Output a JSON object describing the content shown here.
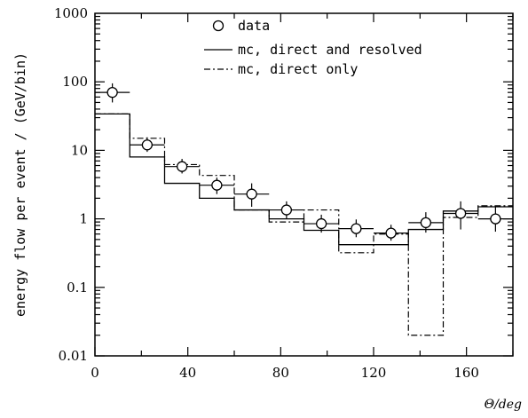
{
  "chart_data": {
    "type": "histogram",
    "xlabel": "Θ/deg",
    "ylabel": "energy flow per event / (GeV/bin)",
    "xlim": [
      0,
      180
    ],
    "ylim": [
      0.01,
      1000
    ],
    "yscale": "log",
    "x_ticks": [
      0,
      40,
      80,
      120,
      160
    ],
    "y_ticks": [
      {
        "value": 0.01,
        "label": "0.01"
      },
      {
        "value": 0.1,
        "label": "0.1"
      },
      {
        "value": 1,
        "label": "1"
      },
      {
        "value": 10,
        "label": "10"
      },
      {
        "value": 100,
        "label": "100"
      },
      {
        "value": 1000,
        "label": "1000"
      }
    ],
    "bin_edges": [
      0,
      15,
      30,
      45,
      60,
      75,
      90,
      105,
      120,
      135,
      150,
      165,
      180
    ],
    "series": [
      {
        "name": "data",
        "style": "open-circle",
        "x": [
          7.5,
          22.5,
          37.5,
          52.5,
          67.5,
          82.5,
          97.5,
          112.5,
          127.5,
          142.5,
          157.5,
          172.5
        ],
        "y": [
          70,
          12,
          5.8,
          3.1,
          2.3,
          1.35,
          0.85,
          0.72,
          0.62,
          0.88,
          1.2,
          1.0
        ],
        "y_err_low": [
          50,
          9.5,
          4.6,
          2.3,
          1.5,
          1.0,
          0.63,
          0.54,
          0.48,
          0.63,
          0.7,
          0.65
        ],
        "y_err_high": [
          95,
          15.5,
          7.5,
          4.0,
          3.3,
          1.8,
          1.15,
          0.98,
          0.82,
          1.25,
          1.8,
          1.55
        ]
      },
      {
        "name": "mc, direct and resolved",
        "style": "solid",
        "values": [
          34,
          8,
          3.3,
          2.0,
          1.35,
          1.0,
          0.68,
          0.42,
          0.42,
          0.7,
          1.3,
          1.5
        ]
      },
      {
        "name": "mc, direct only",
        "style": "dash-dot",
        "values": [
          34,
          15,
          6.2,
          4.3,
          1.35,
          0.9,
          1.35,
          0.32,
          0.6,
          0.02,
          1.05,
          1.55
        ]
      }
    ],
    "legend_position": "top-right"
  }
}
